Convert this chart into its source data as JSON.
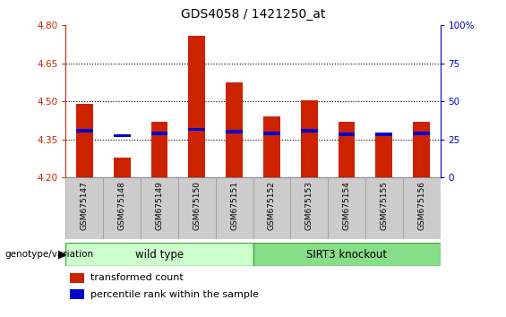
{
  "title": "GDS4058 / 1421250_at",
  "samples": [
    "GSM675147",
    "GSM675148",
    "GSM675149",
    "GSM675150",
    "GSM675151",
    "GSM675152",
    "GSM675153",
    "GSM675154",
    "GSM675155",
    "GSM675156"
  ],
  "transformed_counts": [
    4.49,
    4.28,
    4.42,
    4.76,
    4.575,
    4.44,
    4.505,
    4.42,
    4.375,
    4.42
  ],
  "percentile_values": [
    4.385,
    4.365,
    4.375,
    4.39,
    4.38,
    4.375,
    4.385,
    4.37,
    4.37,
    4.375
  ],
  "ylim": [
    4.2,
    4.8
  ],
  "yticks": [
    4.2,
    4.35,
    4.5,
    4.65,
    4.8
  ],
  "right_yticks": [
    0,
    25,
    50,
    75,
    100
  ],
  "bar_color": "#cc2200",
  "percentile_color": "#0000cc",
  "bar_width": 0.45,
  "wild_type_samples": 5,
  "wild_type_label": "wild type",
  "knockout_label": "SIRT3 knockout",
  "genotype_label": "genotype/variation",
  "legend_count_label": "transformed count",
  "legend_percentile_label": "percentile rank within the sample",
  "group_bg_light": "#ccffcc",
  "group_bg_dark": "#88dd88",
  "label_bg_color": "#cccccc",
  "axis_color_left": "#cc2200",
  "axis_color_right": "#0000cc",
  "ybase": 4.2
}
